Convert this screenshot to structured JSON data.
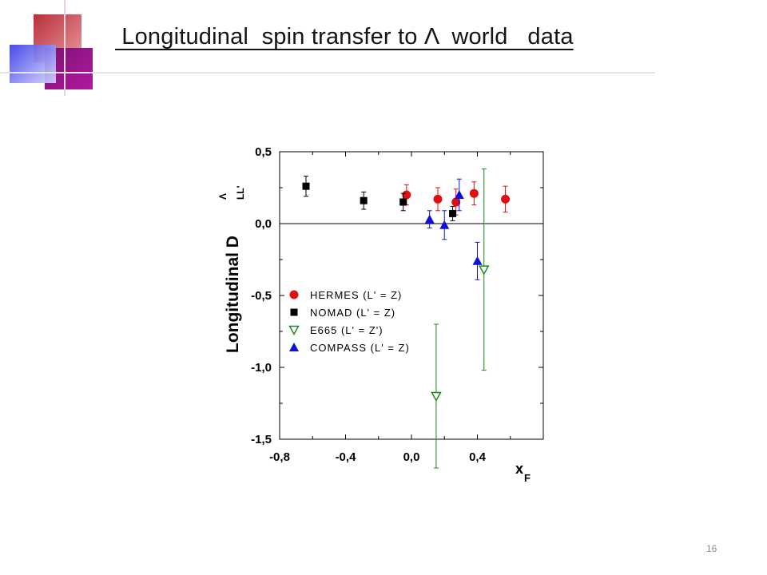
{
  "slide": {
    "title": " Longitudinal  spin transfer to Λ  world   data",
    "page_number": "16"
  },
  "chart_data": {
    "type": "scatter",
    "title": "",
    "xlabel": "x",
    "xlabel_sub": "F",
    "ylabel": "Longitudinal D",
    "ylabel_sup": "Λ",
    "ylabel_sub": "LL'",
    "xlim": [
      -0.8,
      0.8
    ],
    "ylim": [
      -1.5,
      0.5
    ],
    "x_ticks": [
      -0.8,
      -0.4,
      0.0,
      0.4
    ],
    "x_tick_labels": [
      "-0,8",
      "-0,4",
      "0,0",
      "0,4"
    ],
    "y_ticks": [
      0.5,
      0.0,
      -0.5,
      -1.0,
      -1.5
    ],
    "y_tick_labels": [
      "0,5",
      "0,0",
      "-0,5",
      "-1,0",
      "-1,5"
    ],
    "zero_line": true,
    "grid": false,
    "legend_position": "lower-left",
    "series": [
      {
        "name": "HERMES (L' = Z)",
        "marker": "circle",
        "color": "#e01010",
        "points": [
          {
            "x": -0.03,
            "y": 0.2,
            "err": 0.07
          },
          {
            "x": 0.16,
            "y": 0.17,
            "err": 0.08
          },
          {
            "x": 0.27,
            "y": 0.15,
            "err": 0.09
          },
          {
            "x": 0.38,
            "y": 0.21,
            "err": 0.08
          },
          {
            "x": 0.57,
            "y": 0.17,
            "err": 0.09
          }
        ]
      },
      {
        "name": "NOMAD (L' = Z)",
        "marker": "square",
        "color": "#000000",
        "points": [
          {
            "x": -0.64,
            "y": 0.26,
            "err": 0.07
          },
          {
            "x": -0.29,
            "y": 0.16,
            "err": 0.06
          },
          {
            "x": -0.05,
            "y": 0.15,
            "err": 0.06
          },
          {
            "x": 0.25,
            "y": 0.07,
            "err": 0.05
          }
        ]
      },
      {
        "name": "E665 (L' = Z')",
        "marker": "triangle-down-open",
        "color": "#1a8a1a",
        "points": [
          {
            "x": 0.15,
            "y": -1.2,
            "err": 0.5
          },
          {
            "x": 0.44,
            "y": -0.32,
            "err": 0.7
          }
        ]
      },
      {
        "name": "COMPASS (L' = Z)",
        "marker": "triangle-up",
        "color": "#1010d8",
        "points": [
          {
            "x": 0.11,
            "y": 0.03,
            "err": 0.06
          },
          {
            "x": 0.2,
            "y": -0.01,
            "err": 0.1
          },
          {
            "x": 0.29,
            "y": 0.2,
            "err": 0.11
          },
          {
            "x": 0.4,
            "y": -0.26,
            "err": 0.13
          }
        ]
      }
    ]
  }
}
